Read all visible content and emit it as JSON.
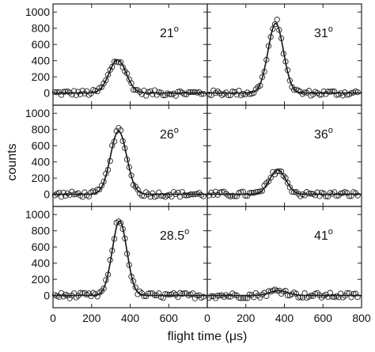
{
  "chart_data": {
    "type": "scatter",
    "title": "",
    "xlabel": "flight time (μs)",
    "ylabel": "counts",
    "xlim": [
      0,
      800
    ],
    "ylim": [
      -150,
      1100
    ],
    "x_ticks": [
      "0",
      "200",
      "400",
      "600",
      "800"
    ],
    "y_ticks": [
      "0",
      "200",
      "400",
      "600",
      "800",
      "1000"
    ],
    "grid": false,
    "layout_rows": 3,
    "layout_cols": 2,
    "panels": [
      {
        "label": "21",
        "unit": "o",
        "peak_time": 335,
        "peak_counts": 410,
        "width": 44
      },
      {
        "label": "31",
        "unit": "o",
        "peak_time": 355,
        "peak_counts": 860,
        "width": 40
      },
      {
        "label": "26",
        "unit": "o",
        "peak_time": 340,
        "peak_counts": 780,
        "width": 42
      },
      {
        "label": "36",
        "unit": "o",
        "peak_time": 365,
        "peak_counts": 300,
        "width": 42
      },
      {
        "label": "28.5",
        "unit": "o",
        "peak_time": 345,
        "peak_counts": 920,
        "width": 38
      },
      {
        "label": "41",
        "unit": "o",
        "peak_time": 370,
        "peak_counts": 60,
        "width": 48
      }
    ]
  }
}
